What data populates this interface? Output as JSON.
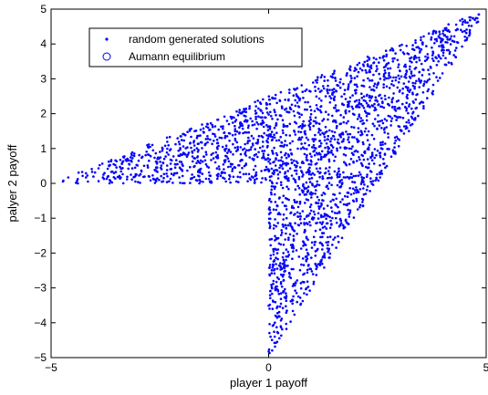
{
  "chart_data": {
    "type": "scatter",
    "title": "",
    "xlabel": "player 1 payoff",
    "ylabel": "palyer 2 payoff",
    "xlim": [
      -5,
      5
    ],
    "ylim": [
      -5,
      5
    ],
    "x_ticks": [
      -5,
      0,
      5
    ],
    "y_ticks": [
      -5,
      -4,
      -3,
      -2,
      -1,
      0,
      1,
      2,
      3,
      4,
      5
    ],
    "grid": false,
    "legend_position": "top-left",
    "series": [
      {
        "name": "random generated solutions",
        "marker": "dot",
        "color": "#0000ff",
        "point_count": 2500,
        "region_vertices": [
          [
            -5,
            0
          ],
          [
            0,
            0
          ],
          [
            0,
            -5
          ],
          [
            5,
            5
          ]
        ]
      },
      {
        "name": "Aumann equilibrium",
        "marker": "circle",
        "color": "#0000ff",
        "x": [],
        "y": []
      }
    ]
  }
}
